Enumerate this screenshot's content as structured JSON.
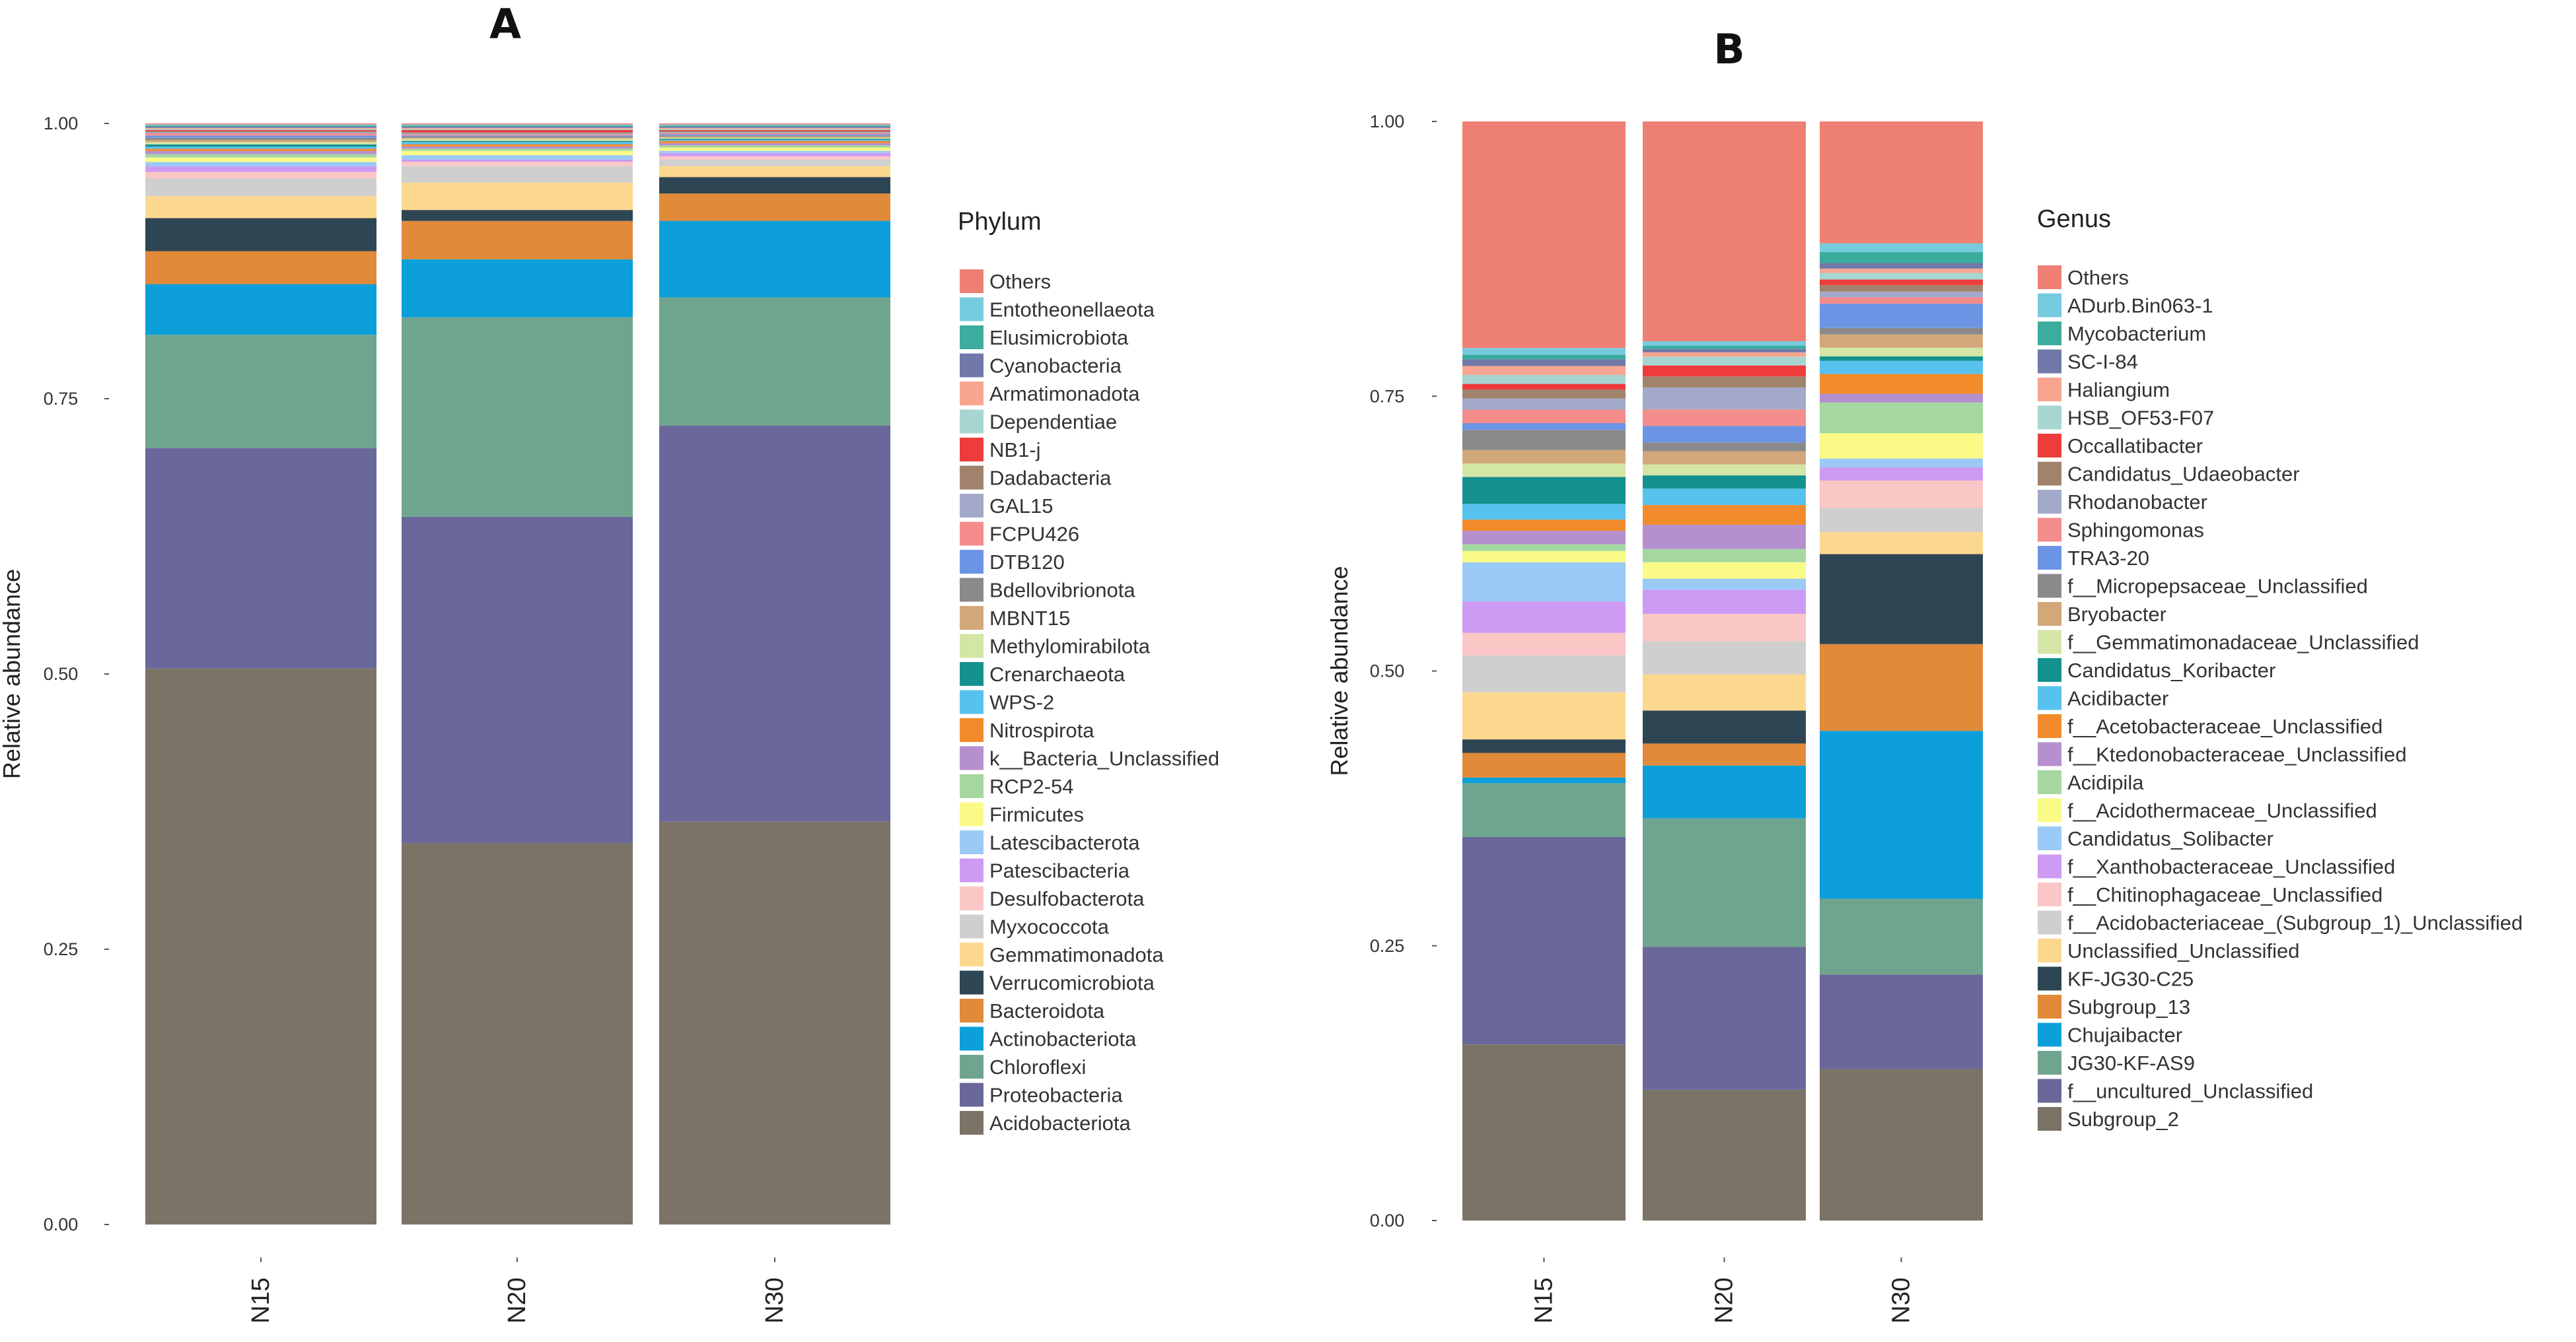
{
  "chart_data": [
    {
      "panel": "A",
      "type": "bar",
      "stacked": true,
      "ylabel": "Relative abundance",
      "xlabel": "",
      "ylim": [
        0,
        1
      ],
      "yticks": [
        {
          "value": 0.0,
          "label": "0.00"
        },
        {
          "value": 0.25,
          "label": "0.25"
        },
        {
          "value": 0.5,
          "label": "0.50"
        },
        {
          "value": 0.75,
          "label": "0.75"
        },
        {
          "value": 1.0,
          "label": "1.00"
        }
      ],
      "categories": [
        "N15",
        "N20",
        "N30"
      ],
      "legend_title": "Phylum",
      "series": [
        {
          "name": "Acidobacteriota",
          "color": "#7b7466",
          "values": [
            0.505,
            0.348,
            0.368
          ]
        },
        {
          "name": "Proteobacteria",
          "color": "#6a679b",
          "values": [
            0.2,
            0.298,
            0.362
          ]
        },
        {
          "name": "Chloroflexi",
          "color": "#6fa58f",
          "values": [
            0.103,
            0.182,
            0.117
          ]
        },
        {
          "name": "Actinobacteriota",
          "color": "#0c9fd9",
          "values": [
            0.046,
            0.053,
            0.07
          ]
        },
        {
          "name": "Bacteroidota",
          "color": "#e08a3a",
          "values": [
            0.03,
            0.035,
            0.025
          ]
        },
        {
          "name": "Verrucomicrobiota",
          "color": "#2e4654",
          "values": [
            0.03,
            0.01,
            0.015
          ]
        },
        {
          "name": "Gemmatimonadota",
          "color": "#fcd88f",
          "values": [
            0.02,
            0.025,
            0.01
          ]
        },
        {
          "name": "Myxococcota",
          "color": "#cfcfcf",
          "values": [
            0.016,
            0.015,
            0.006
          ]
        },
        {
          "name": "Desulfobacterota",
          "color": "#fbc6c6",
          "values": [
            0.006,
            0.004,
            0.003
          ]
        },
        {
          "name": "Patescibacteria",
          "color": "#cd9bf3",
          "values": [
            0.005,
            0.002,
            0.003
          ]
        },
        {
          "name": "Latescibacterota",
          "color": "#9bcaf6",
          "values": [
            0.004,
            0.004,
            0.002
          ]
        },
        {
          "name": "Firmicutes",
          "color": "#fafa87",
          "values": [
            0.004,
            0.004,
            0.003
          ]
        },
        {
          "name": "RCP2-54",
          "color": "#a4d8a0",
          "values": [
            0.003,
            0.002,
            0.002
          ]
        },
        {
          "name": "k__Bacteria_Unclassified",
          "color": "#b590cf",
          "values": [
            0.003,
            0.002,
            0.002
          ]
        },
        {
          "name": "Nitrospirota",
          "color": "#f28b2c",
          "values": [
            0.002,
            0.002,
            0.002
          ]
        },
        {
          "name": "WPS-2",
          "color": "#58c2ee",
          "values": [
            0.002,
            0.002,
            0.001
          ]
        },
        {
          "name": "Crenarchaeota",
          "color": "#14918e",
          "values": [
            0.002,
            0.001,
            0.001
          ]
        },
        {
          "name": "Methylomirabilota",
          "color": "#d3e6a5",
          "values": [
            0.002,
            0.002,
            0.001
          ]
        },
        {
          "name": "MBNT15",
          "color": "#d2a77a",
          "values": [
            0.002,
            0.001,
            0.001
          ]
        },
        {
          "name": "Bdellovibrionota",
          "color": "#8a8a8a",
          "values": [
            0.002,
            0.001,
            0.001
          ]
        },
        {
          "name": "DTB120",
          "color": "#6c94e4",
          "values": [
            0.002,
            0.001,
            0.001
          ]
        },
        {
          "name": "FCPU426",
          "color": "#f48c8c",
          "values": [
            0.002,
            0.001,
            0.001
          ]
        },
        {
          "name": "GAL15",
          "color": "#a3a9c9",
          "values": [
            0.001,
            0.001,
            0.001
          ]
        },
        {
          "name": "Dadabacteria",
          "color": "#a1836d",
          "values": [
            0.001,
            0.001,
            0.001
          ]
        },
        {
          "name": "NB1-j",
          "color": "#ee3b3b",
          "values": [
            0.001,
            0.002,
            0.001
          ]
        },
        {
          "name": "Dependentiae",
          "color": "#a6d6cf",
          "values": [
            0.001,
            0.001,
            0.001
          ]
        },
        {
          "name": "Armatimonadota",
          "color": "#f7a58f",
          "values": [
            0.001,
            0.001,
            0.001
          ]
        },
        {
          "name": "Cyanobacteria",
          "color": "#6f78a8",
          "values": [
            0.001,
            0.001,
            0.001
          ]
        },
        {
          "name": "Elusimicrobiota",
          "color": "#3cac9e",
          "values": [
            0.001,
            0.001,
            0.001
          ]
        },
        {
          "name": "Entotheonellaeota",
          "color": "#76cbdf",
          "values": [
            0.001,
            0.001,
            0.001
          ]
        },
        {
          "name": "Others",
          "color": "#ee8073",
          "values": [
            0.001,
            0.001,
            0.001
          ]
        }
      ]
    },
    {
      "panel": "B",
      "type": "bar",
      "stacked": true,
      "ylabel": "Relative abundance",
      "xlabel": "",
      "ylim": [
        0,
        1
      ],
      "yticks": [
        {
          "value": 0.0,
          "label": "0.00"
        },
        {
          "value": 0.25,
          "label": "0.25"
        },
        {
          "value": 0.5,
          "label": "0.50"
        },
        {
          "value": 0.75,
          "label": "0.75"
        },
        {
          "value": 1.0,
          "label": "1.00"
        }
      ],
      "categories": [
        "N15",
        "N20",
        "N30"
      ],
      "legend_title": "Genus",
      "series": [
        {
          "name": "Subgroup_2",
          "color": "#7b7466",
          "values": [
            0.157,
            0.119,
            0.138
          ]
        },
        {
          "name": "f__uncultured_Unclassified",
          "color": "#6a679b",
          "values": [
            0.185,
            0.13,
            0.086
          ]
        },
        {
          "name": "JG30-KF-AS9",
          "color": "#6fa58f",
          "values": [
            0.048,
            0.117,
            0.069
          ]
        },
        {
          "name": "Chujaibacter",
          "color": "#0c9fd9",
          "values": [
            0.005,
            0.048,
            0.153
          ]
        },
        {
          "name": "Subgroup_13",
          "color": "#e08a3a",
          "values": [
            0.022,
            0.02,
            0.079
          ]
        },
        {
          "name": "KF-JG30-C25",
          "color": "#2e4654",
          "values": [
            0.012,
            0.03,
            0.082
          ]
        },
        {
          "name": "Unclassified_Unclassified",
          "color": "#fcd88f",
          "values": [
            0.042,
            0.033,
            0.02
          ]
        },
        {
          "name": "f__Acidobacteriaceae_(Subgroup_1)_Unclassified",
          "color": "#cfcfcf",
          "values": [
            0.033,
            0.03,
            0.022
          ]
        },
        {
          "name": "f__Chitinophagaceae_Unclassified",
          "color": "#fbc6c6",
          "values": [
            0.02,
            0.025,
            0.025
          ]
        },
        {
          "name": "f__Xanthobacteraceae_Unclassified",
          "color": "#cd9bf3",
          "values": [
            0.028,
            0.022,
            0.012
          ]
        },
        {
          "name": "Candidatus_Solibacter",
          "color": "#9bcaf6",
          "values": [
            0.035,
            0.01,
            0.008
          ]
        },
        {
          "name": "f__Acidothermaceae_Unclassified",
          "color": "#fafa87",
          "values": [
            0.01,
            0.015,
            0.023
          ]
        },
        {
          "name": "Acidipila",
          "color": "#a4d8a0",
          "values": [
            0.006,
            0.012,
            0.028
          ]
        },
        {
          "name": "f__Ktedonobacteraceae_Unclassified",
          "color": "#b590cf",
          "values": [
            0.012,
            0.022,
            0.008
          ]
        },
        {
          "name": "f__Acetobacteraceae_Unclassified",
          "color": "#f28b2c",
          "values": [
            0.01,
            0.018,
            0.018
          ]
        },
        {
          "name": "Acidibacter",
          "color": "#58c2ee",
          "values": [
            0.014,
            0.015,
            0.012
          ]
        },
        {
          "name": "Candidatus_Koribacter",
          "color": "#14918e",
          "values": [
            0.024,
            0.012,
            0.004
          ]
        },
        {
          "name": "f__Gemmatimonadaceae_Unclassified",
          "color": "#d3e6a5",
          "values": [
            0.012,
            0.01,
            0.008
          ]
        },
        {
          "name": "Bryobacter",
          "color": "#d2a77a",
          "values": [
            0.012,
            0.012,
            0.012
          ]
        },
        {
          "name": "f__Micropepsaceae_Unclassified",
          "color": "#8a8a8a",
          "values": [
            0.018,
            0.008,
            0.006
          ]
        },
        {
          "name": "TRA3-20",
          "color": "#6c94e4",
          "values": [
            0.006,
            0.015,
            0.022
          ]
        },
        {
          "name": "Sphingomonas",
          "color": "#f48c8c",
          "values": [
            0.012,
            0.015,
            0.006
          ]
        },
        {
          "name": "Rhodanobacter",
          "color": "#a3a9c9",
          "values": [
            0.01,
            0.02,
            0.005
          ]
        },
        {
          "name": "Candidatus_Udaeobacter",
          "color": "#a1836d",
          "values": [
            0.008,
            0.01,
            0.006
          ]
        },
        {
          "name": "Occallatibacter",
          "color": "#ee3b3b",
          "values": [
            0.005,
            0.01,
            0.005
          ]
        },
        {
          "name": "HSB_OF53-F07",
          "color": "#a6d6cf",
          "values": [
            0.008,
            0.008,
            0.006
          ]
        },
        {
          "name": "Haliangium",
          "color": "#f7a58f",
          "values": [
            0.008,
            0.004,
            0.004
          ]
        },
        {
          "name": "SC-I-84",
          "color": "#6f78a8",
          "values": [
            0.006,
            0.003,
            0.005
          ]
        },
        {
          "name": "Mycobacterium",
          "color": "#3cac9e",
          "values": [
            0.004,
            0.003,
            0.01
          ]
        },
        {
          "name": "ADurb.Bin063-1",
          "color": "#76cbdf",
          "values": [
            0.006,
            0.004,
            0.008
          ]
        },
        {
          "name": "Others",
          "color": "#ee8073",
          "values": [
            0.202,
            0.2,
            0.111
          ]
        }
      ]
    }
  ]
}
